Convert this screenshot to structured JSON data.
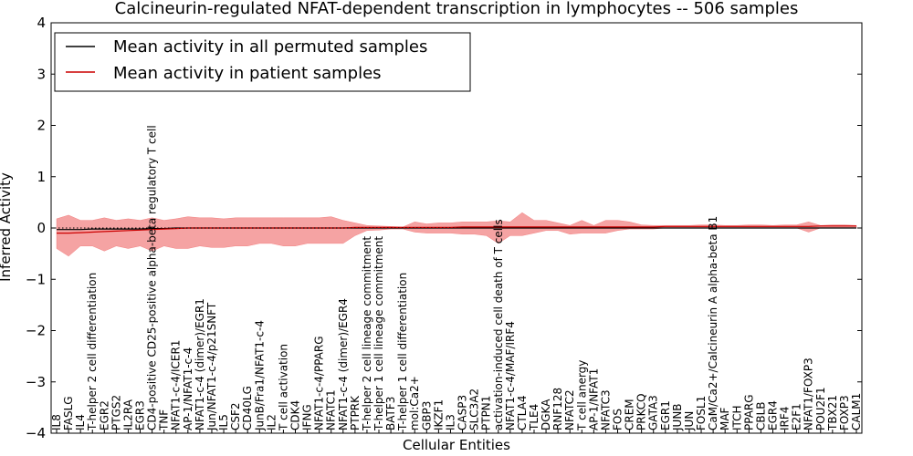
{
  "chart_data": {
    "type": "line",
    "title": "Calcineurin-regulated NFAT-dependent transcription in lymphocytes -- 506 samples",
    "xlabel": "Cellular Entities",
    "ylabel": "Inferred Activity",
    "ylim": [
      -4,
      4
    ],
    "yticks": [
      -4,
      -3,
      -2,
      -1,
      0,
      1,
      2,
      3,
      4
    ],
    "grid": false,
    "legend_position": "top-left",
    "colors": {
      "permuted": "#000000",
      "patient": "#cc0000",
      "band": "#ef6666",
      "band_permuted": "#c8c8c8"
    },
    "categories": [
      "IL8",
      "FASLG",
      "IL4",
      "T-helper 2 cell differentiation",
      "EGR2",
      "PTGS2",
      "IL2RA",
      "EGR3",
      "CD4-positive CD25-positive alpha-beta regulatory T cell",
      "TNF",
      "NFAT1-c-4/ICER1",
      "AP-1/NFAT1-c-4",
      "NFAT1-c-4 (dimer)/EGR1",
      "Jun/NFAT1-c-4/p21SNFT",
      "IL5",
      "CSF2",
      "CD40LG",
      "JunB/Fra1/NFAT1-c-4",
      "IL2",
      "T cell activation",
      "CDK4",
      "IFNG",
      "NFAT1-c-4/PPARG",
      "NFATC1",
      "NFAT1-c-4 (dimer)/EGR4",
      "PTPRK",
      "T-helper 2 cell lineage commitment",
      "T-helper 1 cell lineage commitment",
      "BATF3",
      "T-helper 1 cell differentiation",
      "mol:Ca2+",
      "GBP3",
      "IKZF1",
      "IL3",
      "CASP3",
      "SLC3A2",
      "PTPN1",
      "activation-induced cell death of T cells",
      "NFAT1-c-4/MAF/IRF4",
      "CTLA4",
      "TLE4",
      "DGKA",
      "RNF128",
      "NFATC2",
      "T cell anergy",
      "AP-1/NFAT1",
      "NFATC3",
      "FOS",
      "CREM",
      "PRKCQ",
      "GATA3",
      "EGR1",
      "JUNB",
      "JUN",
      "FOSL1",
      "CaM/Ca2+/Calcineurin A alpha-beta B1",
      "MAF",
      "ITCH",
      "PPARG",
      "CBLB",
      "EGR4",
      "IRF4",
      "E2F1",
      "NFAT1/FOXP3",
      "POU2F1",
      "TBX21",
      "FOXP3",
      "CALM1"
    ],
    "series": [
      {
        "name": "Mean activity in all permuted samples",
        "color": "#000000",
        "values": [
          -0.03,
          -0.03,
          -0.03,
          -0.02,
          -0.02,
          -0.02,
          -0.02,
          -0.02,
          -0.01,
          -0.01,
          0.0,
          0.0,
          0.0,
          0.0,
          0.0,
          0.0,
          0.0,
          0.0,
          0.0,
          0.0,
          0.0,
          0.0,
          0.0,
          0.0,
          0.0,
          0.0,
          0.0,
          0.0,
          0.0,
          0.0,
          0.0,
          0.0,
          0.0,
          0.0,
          0.0,
          0.0,
          0.0,
          0.0,
          0.0,
          0.0,
          0.0,
          0.0,
          0.0,
          0.0,
          0.0,
          0.0,
          0.0,
          0.0,
          0.0,
          0.0,
          0.0,
          0.0,
          0.0,
          0.0,
          0.0,
          0.0,
          0.0,
          0.0,
          0.0,
          0.0,
          0.0,
          0.0,
          0.0,
          0.0,
          0.0,
          0.0,
          0.0,
          0.0
        ]
      },
      {
        "name": "Mean activity in patient samples",
        "color": "#cc0000",
        "values": [
          -0.1,
          -0.1,
          -0.09,
          -0.08,
          -0.07,
          -0.06,
          -0.05,
          -0.04,
          -0.03,
          -0.02,
          -0.01,
          0.0,
          0.0,
          0.0,
          0.0,
          0.0,
          0.0,
          0.0,
          0.0,
          0.0,
          0.0,
          0.0,
          0.0,
          0.0,
          0.0,
          0.01,
          0.01,
          0.01,
          0.01,
          0.01,
          0.01,
          0.01,
          0.01,
          0.01,
          0.02,
          0.02,
          0.02,
          0.02,
          0.02,
          0.02,
          0.02,
          0.02,
          0.02,
          0.02,
          0.02,
          0.02,
          0.02,
          0.02,
          0.02,
          0.02,
          0.02,
          0.03,
          0.03,
          0.03,
          0.03,
          0.03,
          0.03,
          0.03,
          0.03,
          0.03,
          0.03,
          0.03,
          0.03,
          0.03,
          0.04,
          0.04,
          0.04,
          0.04
        ]
      }
    ],
    "band_upper": [
      0.18,
      0.25,
      0.15,
      0.15,
      0.2,
      0.15,
      0.18,
      0.15,
      0.2,
      0.15,
      0.18,
      0.22,
      0.2,
      0.2,
      0.18,
      0.2,
      0.2,
      0.2,
      0.2,
      0.2,
      0.2,
      0.2,
      0.2,
      0.22,
      0.15,
      0.1,
      0.05,
      0.04,
      0.03,
      0.02,
      0.12,
      0.08,
      0.1,
      0.1,
      0.12,
      0.12,
      0.12,
      0.14,
      0.12,
      0.3,
      0.15,
      0.15,
      0.1,
      0.05,
      0.15,
      0.05,
      0.15,
      0.15,
      0.12,
      0.06,
      0.05,
      0.05,
      0.05,
      0.05,
      0.06,
      0.06,
      0.05,
      0.05,
      0.06,
      0.06,
      0.05,
      0.06,
      0.06,
      0.12,
      0.05,
      0.06,
      0.06,
      0.05
    ],
    "band_lower": [
      -0.4,
      -0.55,
      -0.35,
      -0.35,
      -0.45,
      -0.35,
      -0.4,
      -0.35,
      -0.45,
      -0.35,
      -0.4,
      -0.4,
      -0.35,
      -0.38,
      -0.38,
      -0.35,
      -0.35,
      -0.3,
      -0.3,
      -0.35,
      -0.35,
      -0.3,
      -0.3,
      -0.3,
      -0.3,
      -0.15,
      -0.05,
      -0.04,
      -0.02,
      -0.02,
      -0.08,
      -0.1,
      -0.1,
      -0.1,
      -0.12,
      -0.12,
      -0.15,
      -0.3,
      -0.15,
      -0.15,
      -0.1,
      -0.05,
      -0.05,
      -0.12,
      -0.1,
      -0.1,
      -0.1,
      -0.05,
      -0.02,
      -0.02,
      -0.02,
      0.0,
      0.0,
      0.0,
      0.0,
      0.0,
      0.0,
      0.0,
      0.0,
      0.0,
      0.0,
      0.0,
      0.0,
      -0.08,
      0.0,
      0.0,
      0.0,
      0.0
    ]
  }
}
